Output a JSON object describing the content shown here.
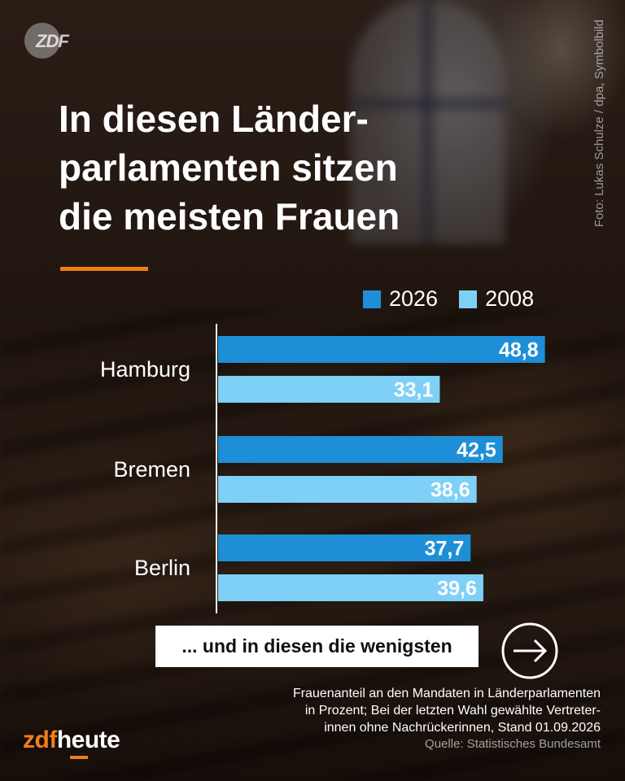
{
  "header": {
    "logo_text": "ZDF",
    "photo_credit": "Foto: Lukas Schulze / dpa, Symbolbild",
    "title_lines": [
      "In diesen Länder-",
      "parlamenten sitzen",
      "die meisten Frauen"
    ]
  },
  "colors": {
    "series_2026": "#1e8fd6",
    "series_2008": "#7fd0f7",
    "accent": "#f07d19"
  },
  "chart_data": {
    "type": "bar",
    "orientation": "horizontal",
    "categories": [
      "Hamburg",
      "Bremen",
      "Berlin"
    ],
    "series": [
      {
        "name": "2026",
        "values": [
          48.8,
          42.5,
          37.7
        ],
        "labels": [
          "48,8",
          "42,5",
          "37,7"
        ]
      },
      {
        "name": "2008",
        "values": [
          33.1,
          38.6,
          39.6
        ],
        "labels": [
          "33,1",
          "38,6",
          "39,6"
        ]
      }
    ],
    "legend_position": "top-right",
    "grid": false
  },
  "cta": {
    "label": "... und in diesen die wenigsten",
    "icon": "arrow-right-circle-icon"
  },
  "footer": {
    "note_lines": [
      "Frauenanteil an den Mandaten in Länderparlamenten",
      "in Prozent; Bei der letzten Wahl gewählte Vertreter-",
      "innen ohne Nachrückerinnen, Stand 01.09.2026"
    ],
    "source": "Quelle: Statistisches Bundesamt",
    "brand_part1": "zdf",
    "brand_part2": "heute"
  }
}
